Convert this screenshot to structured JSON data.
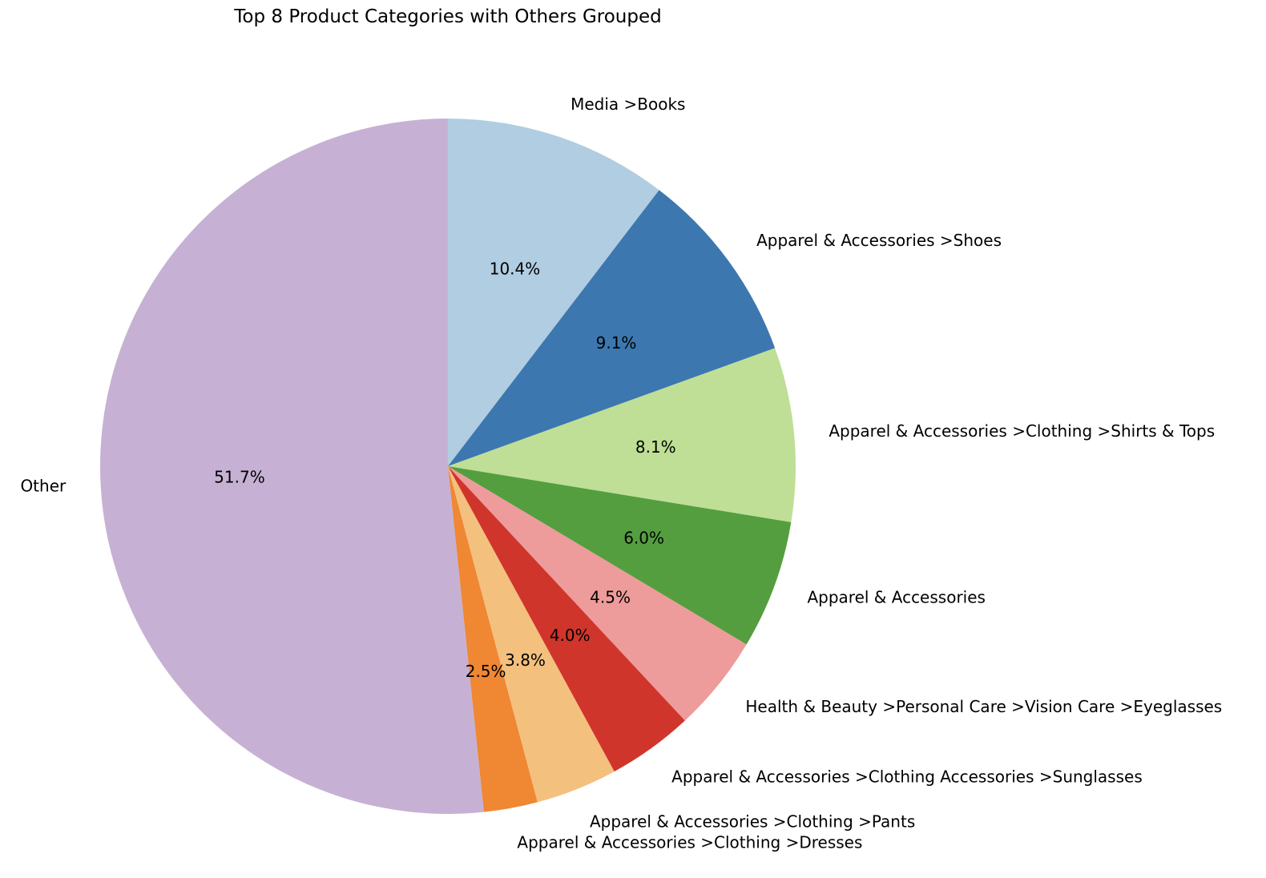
{
  "chart_data": {
    "type": "pie",
    "title": "Top 8 Product Categories with Others Grouped",
    "start_angle_deg": 90,
    "direction": "clockwise",
    "slices": [
      {
        "label": "Media >Books",
        "value": 10.4,
        "pct_label": "10.4%",
        "color": "#b0cde1"
      },
      {
        "label": "Apparel & Accessories >Shoes",
        "value": 9.1,
        "pct_label": "9.1%",
        "color": "#3d77af"
      },
      {
        "label": "Apparel & Accessories >Clothing >Shirts & Tops",
        "value": 8.1,
        "pct_label": "8.1%",
        "color": "#bedf95"
      },
      {
        "label": "Apparel & Accessories",
        "value": 6.0,
        "pct_label": "6.0%",
        "color": "#549e3f"
      },
      {
        "label": "Health & Beauty >Personal Care >Vision Care >Eyeglasses",
        "value": 4.5,
        "pct_label": "4.5%",
        "color": "#ee9b9b"
      },
      {
        "label": "Apparel & Accessories >Clothing Accessories >Sunglasses",
        "value": 4.0,
        "pct_label": "4.0%",
        "color": "#d0352b"
      },
      {
        "label": "Apparel & Accessories >Clothing >Pants",
        "value": 3.8,
        "pct_label": "3.8%",
        "color": "#f4c07e"
      },
      {
        "label": "Apparel & Accessories >Clothing >Dresses",
        "value": 2.5,
        "pct_label": "2.5%",
        "color": "#ef8733"
      },
      {
        "label": "Other",
        "value": 51.7,
        "pct_label": "51.7%",
        "color": "#c6b1d4"
      }
    ]
  }
}
